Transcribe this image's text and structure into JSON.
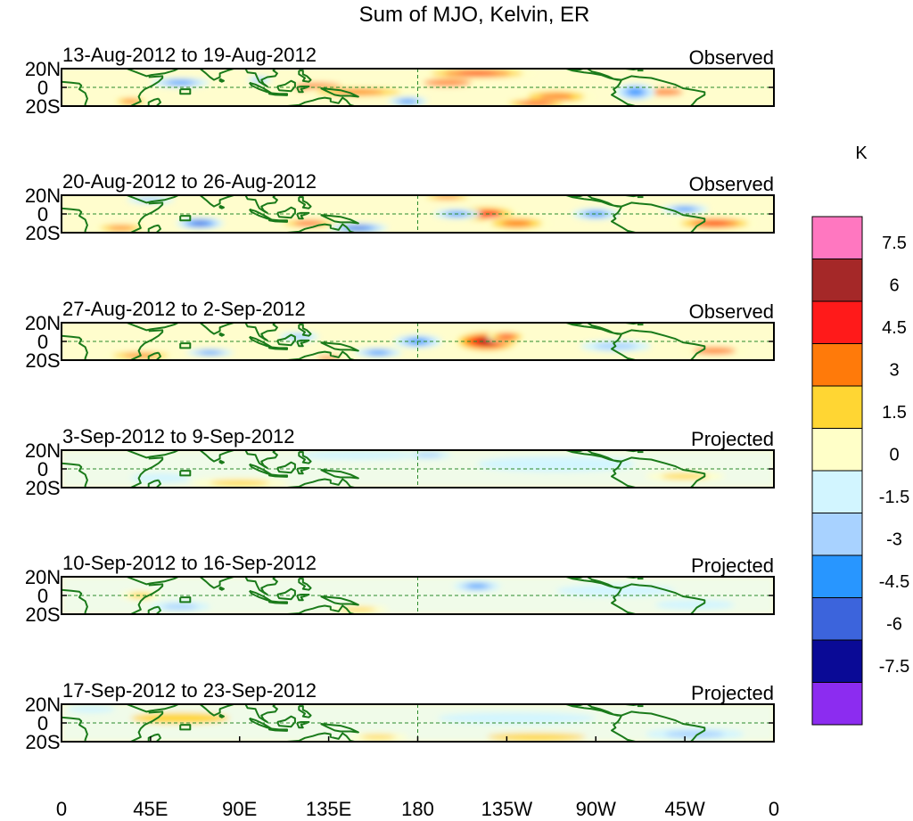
{
  "title": "Sum of MJO, Kelvin, ER",
  "colorbar": {
    "unit": "K",
    "levels": [
      "7.5",
      "6",
      "4.5",
      "3",
      "1.5",
      "0",
      "-1.5",
      "-3",
      "-4.5",
      "-6",
      "-7.5"
    ],
    "colors": [
      "#ff77c0",
      "#a52828",
      "#ff1a1a",
      "#ff7a0a",
      "#ffd633",
      "#ffffc8",
      "#d2f5ff",
      "#a8d2ff",
      "#2896ff",
      "#3c64dc",
      "#0a0a96",
      "#8c2cf0"
    ]
  },
  "axes": {
    "y_ticks": [
      "20N",
      "0",
      "20S"
    ],
    "x_ticks": [
      "0",
      "45E",
      "90E",
      "135E",
      "180",
      "135W",
      "90W",
      "45W",
      "0"
    ]
  },
  "panels": [
    {
      "date_range": "13-Aug-2012 to 19-Aug-2012",
      "type": "Observed"
    },
    {
      "date_range": "20-Aug-2012 to 26-Aug-2012",
      "type": "Observed"
    },
    {
      "date_range": "27-Aug-2012 to 2-Sep-2012",
      "type": "Observed"
    },
    {
      "date_range": "3-Sep-2012 to 9-Sep-2012",
      "type": "Projected"
    },
    {
      "date_range": "10-Sep-2012 to 16-Sep-2012",
      "type": "Projected"
    },
    {
      "date_range": "17-Sep-2012 to 23-Sep-2012",
      "type": "Projected"
    }
  ],
  "anomalies": [
    [
      {
        "lon": 210,
        "lat": 15,
        "rx": 30,
        "ry": 6,
        "v": 5
      },
      {
        "lon": 195,
        "lat": 5,
        "rx": 20,
        "ry": 6,
        "v": 3
      },
      {
        "lon": 130,
        "lat": 0,
        "rx": 20,
        "ry": 8,
        "v": 3
      },
      {
        "lon": 150,
        "lat": -5,
        "rx": 30,
        "ry": 6,
        "v": 4
      },
      {
        "lon": 250,
        "lat": -10,
        "rx": 20,
        "ry": 8,
        "v": 4
      },
      {
        "lon": 240,
        "lat": -17,
        "rx": 18,
        "ry": 5,
        "v": 5
      },
      {
        "lon": 305,
        "lat": -5,
        "rx": 15,
        "ry": 6,
        "v": 3
      },
      {
        "lon": 60,
        "lat": 5,
        "rx": 15,
        "ry": 5,
        "v": -3.5
      },
      {
        "lon": 100,
        "lat": 8,
        "rx": 6,
        "ry": 4,
        "v": -3
      },
      {
        "lon": 175,
        "lat": -15,
        "rx": 10,
        "ry": 5,
        "v": -4
      },
      {
        "lon": 290,
        "lat": -5,
        "rx": 10,
        "ry": 9,
        "v": -4
      },
      {
        "lon": 35,
        "lat": -15,
        "rx": 10,
        "ry": 5,
        "v": 4
      }
    ],
    [
      {
        "lon": 215,
        "lat": 0,
        "rx": 18,
        "ry": 10,
        "v": 4.5
      },
      {
        "lon": 230,
        "lat": -10,
        "rx": 18,
        "ry": 8,
        "v": 3.5
      },
      {
        "lon": 330,
        "lat": -10,
        "rx": 22,
        "ry": 7,
        "v": 5
      },
      {
        "lon": 125,
        "lat": -10,
        "rx": 18,
        "ry": 5,
        "v": 4.5
      },
      {
        "lon": 30,
        "lat": -15,
        "rx": 15,
        "ry": 5,
        "v": 4
      },
      {
        "lon": 195,
        "lat": 18,
        "rx": 15,
        "ry": 4,
        "v": 4
      },
      {
        "lon": 70,
        "lat": -10,
        "rx": 12,
        "ry": 6,
        "v": -6
      },
      {
        "lon": 150,
        "lat": -15,
        "rx": 15,
        "ry": 5,
        "v": -5
      },
      {
        "lon": 200,
        "lat": 0,
        "rx": 12,
        "ry": 5,
        "v": -3.5
      },
      {
        "lon": 270,
        "lat": 0,
        "rx": 12,
        "ry": 6,
        "v": -3.5
      },
      {
        "lon": 315,
        "lat": 5,
        "rx": 12,
        "ry": 5,
        "v": -3.5
      },
      {
        "lon": 45,
        "lat": 15,
        "rx": 12,
        "ry": 4,
        "v": -2.5
      }
    ],
    [
      {
        "lon": 215,
        "lat": 0,
        "rx": 18,
        "ry": 12,
        "v": 6.5
      },
      {
        "lon": 225,
        "lat": 5,
        "rx": 10,
        "ry": 6,
        "v": 5
      },
      {
        "lon": 40,
        "lat": -15,
        "rx": 20,
        "ry": 5,
        "v": 4
      },
      {
        "lon": 330,
        "lat": -10,
        "rx": 18,
        "ry": 6,
        "v": 3
      },
      {
        "lon": 135,
        "lat": -18,
        "rx": 10,
        "ry": 4,
        "v": 3
      },
      {
        "lon": 180,
        "lat": 0,
        "rx": 12,
        "ry": 7,
        "v": -4.5
      },
      {
        "lon": 160,
        "lat": -12,
        "rx": 12,
        "ry": 5,
        "v": -4.5
      },
      {
        "lon": 75,
        "lat": -12,
        "rx": 12,
        "ry": 4,
        "v": -3.5
      },
      {
        "lon": 280,
        "lat": -5,
        "rx": 18,
        "ry": 6,
        "v": -3
      },
      {
        "lon": 120,
        "lat": 5,
        "rx": 10,
        "ry": 5,
        "v": -2.5
      }
    ],
    [
      {
        "lon": 90,
        "lat": -15,
        "rx": 25,
        "ry": 5,
        "v": 2.5
      },
      {
        "lon": 315,
        "lat": -8,
        "rx": 20,
        "ry": 5,
        "v": 2
      },
      {
        "lon": 185,
        "lat": 15,
        "rx": 12,
        "ry": 4,
        "v": -3
      },
      {
        "lon": 150,
        "lat": 15,
        "rx": 30,
        "ry": 5,
        "v": -1.5
      },
      {
        "lon": 250,
        "lat": 5,
        "rx": 40,
        "ry": 8,
        "v": -1
      },
      {
        "lon": 50,
        "lat": -10,
        "rx": 15,
        "ry": 5,
        "v": -1.5
      }
    ],
    [
      {
        "lon": 210,
        "lat": 10,
        "rx": 12,
        "ry": 5,
        "v": -4
      },
      {
        "lon": 60,
        "lat": -12,
        "rx": 15,
        "ry": 5,
        "v": -3
      },
      {
        "lon": 150,
        "lat": -15,
        "rx": 15,
        "ry": 4,
        "v": 2.5
      },
      {
        "lon": 40,
        "lat": 0,
        "rx": 10,
        "ry": 5,
        "v": 2.5
      },
      {
        "lon": 280,
        "lat": 5,
        "rx": 30,
        "ry": 6,
        "v": -1.5
      },
      {
        "lon": 320,
        "lat": -10,
        "rx": 20,
        "ry": 5,
        "v": -1.5
      }
    ],
    [
      {
        "lon": 160,
        "lat": -15,
        "rx": 15,
        "ry": 4,
        "v": 2.5
      },
      {
        "lon": 60,
        "lat": 5,
        "rx": 25,
        "ry": 6,
        "v": 1.5
      },
      {
        "lon": 320,
        "lat": -12,
        "rx": 25,
        "ry": 6,
        "v": -2
      },
      {
        "lon": 230,
        "lat": 5,
        "rx": 40,
        "ry": 6,
        "v": -1
      },
      {
        "lon": 240,
        "lat": -15,
        "rx": 25,
        "ry": 4,
        "v": 1.5
      },
      {
        "lon": 15,
        "lat": 15,
        "rx": 12,
        "ry": 4,
        "v": -1.5
      }
    ]
  ]
}
